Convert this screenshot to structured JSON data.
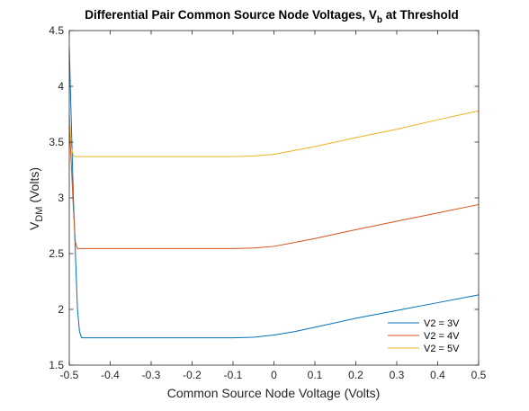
{
  "chart_data": {
    "type": "line",
    "title": "Differential Pair Common Source Node Voltages, V",
    "title_sub": "b",
    "title_suffix": " at Threshold",
    "xlabel": "Common Source Node Voltage (Volts)",
    "ylabel_main": "V",
    "ylabel_sub": "DM",
    "ylabel_suffix": "  (Volts)",
    "xlim": [
      -0.5,
      0.5
    ],
    "ylim": [
      1.5,
      4.5
    ],
    "xticks": [
      -0.5,
      -0.4,
      -0.3,
      -0.2,
      -0.1,
      0,
      0.1,
      0.2,
      0.3,
      0.4,
      0.5
    ],
    "xtick_labels": [
      "-0.5",
      "-0.4",
      "-0.3",
      "-0.2",
      "-0.1",
      "0",
      "0.1",
      "0.2",
      "0.3",
      "0.4",
      "0.5"
    ],
    "yticks": [
      1.5,
      2,
      2.5,
      3,
      3.5,
      4,
      4.5
    ],
    "ytick_labels": [
      "1.5",
      "2",
      "2.5",
      "3",
      "3.5",
      "4",
      "4.5"
    ],
    "grid": false,
    "legend_position": "bottom-right",
    "series": [
      {
        "name": "V2 = 3V",
        "color": "#0072BD",
        "x": [
          -0.5,
          -0.49,
          -0.48,
          -0.475,
          -0.47,
          -0.46,
          -0.4,
          -0.3,
          -0.2,
          -0.1,
          -0.05,
          0,
          0.05,
          0.1,
          0.2,
          0.3,
          0.4,
          0.5
        ],
        "y": [
          4.35,
          3.0,
          2.0,
          1.8,
          1.745,
          1.745,
          1.745,
          1.745,
          1.745,
          1.745,
          1.75,
          1.77,
          1.8,
          1.84,
          1.92,
          1.99,
          2.06,
          2.13
        ]
      },
      {
        "name": "V2 = 4V",
        "color": "#D95319",
        "x": [
          -0.5,
          -0.495,
          -0.49,
          -0.485,
          -0.48,
          -0.47,
          -0.4,
          -0.3,
          -0.2,
          -0.1,
          -0.05,
          0,
          0.05,
          0.1,
          0.2,
          0.3,
          0.4,
          0.5
        ],
        "y": [
          3.65,
          3.3,
          2.9,
          2.6,
          2.545,
          2.545,
          2.545,
          2.545,
          2.545,
          2.545,
          2.55,
          2.565,
          2.6,
          2.635,
          2.715,
          2.79,
          2.865,
          2.94
        ]
      },
      {
        "name": "V2 = 5V",
        "color": "#EDB120",
        "x": [
          -0.5,
          -0.495,
          -0.49,
          -0.485,
          -0.48,
          -0.4,
          -0.3,
          -0.2,
          -0.1,
          -0.05,
          0,
          0.05,
          0.1,
          0.2,
          0.3,
          0.4,
          0.5
        ],
        "y": [
          3.75,
          3.45,
          3.38,
          3.37,
          3.37,
          3.37,
          3.37,
          3.37,
          3.37,
          3.375,
          3.39,
          3.425,
          3.46,
          3.54,
          3.615,
          3.7,
          3.78
        ]
      }
    ]
  }
}
